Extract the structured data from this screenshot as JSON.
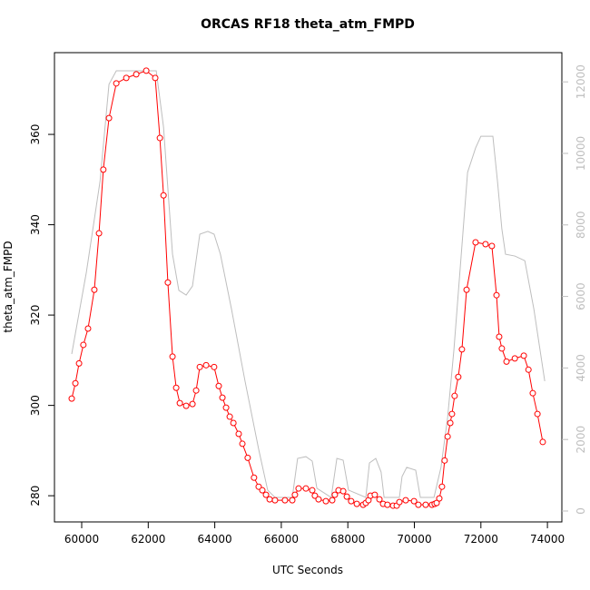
{
  "chart_data": {
    "type": "line",
    "title": "ORCAS RF18 theta_atm_FMPD",
    "x_label": "UTC Seconds",
    "y_label": "theta_atm_FMPD",
    "xlim": [
      59181,
      74434
    ],
    "ylim": [
      274.2,
      378.1
    ],
    "y2lim": [
      -305,
      12817
    ],
    "xticks": [
      60000,
      62000,
      64000,
      66000,
      68000,
      70000,
      72000,
      74000
    ],
    "yticks": [
      280,
      300,
      320,
      340,
      360
    ],
    "y2ticks": [
      0,
      2000,
      4000,
      6000,
      8000,
      10000,
      12000
    ],
    "series": [
      {
        "color": "#ff0000",
        "marker": "circle",
        "x": [
          59700,
          59810,
          59920,
          60050,
          60190,
          60380,
          60520,
          60650,
          60820,
          61040,
          61340,
          61640,
          61940,
          62210,
          62350,
          62460,
          62590,
          62730,
          62840,
          62950,
          63140,
          63330,
          63440,
          63550,
          63740,
          63980,
          64120,
          64230,
          64340,
          64450,
          64560,
          64720,
          64830,
          64990,
          65180,
          65320,
          65430,
          65540,
          65650,
          65810,
          66110,
          66330,
          66410,
          66520,
          66740,
          66930,
          67010,
          67120,
          67340,
          67530,
          67610,
          67720,
          67860,
          67970,
          68100,
          68270,
          68460,
          68540,
          68620,
          68680,
          68810,
          68950,
          69060,
          69190,
          69360,
          69470,
          69550,
          69740,
          69990,
          70120,
          70340,
          70530,
          70610,
          70670,
          70750,
          70830,
          70910,
          71000,
          71080,
          71130,
          71210,
          71320,
          71430,
          71570,
          71840,
          72140,
          72330,
          72470,
          72550,
          72630,
          72770,
          73020,
          73290,
          73430,
          73560,
          73700,
          73860
        ],
        "values": [
          301.5,
          304.9,
          309.3,
          313.4,
          317.0,
          325.6,
          338.1,
          352.2,
          363.6,
          371.3,
          372.5,
          373.3,
          374.1,
          372.5,
          359.2,
          346.5,
          327.2,
          310.8,
          303.9,
          300.5,
          299.9,
          300.3,
          303.3,
          308.5,
          308.9,
          308.5,
          304.3,
          301.7,
          299.5,
          297.5,
          296.1,
          293.7,
          291.5,
          288.4,
          284.0,
          282.0,
          281.2,
          280.2,
          279.2,
          279.0,
          279.0,
          279.0,
          280.2,
          281.6,
          281.6,
          281.2,
          280.0,
          279.2,
          278.8,
          279.0,
          280.2,
          281.2,
          281.0,
          279.8,
          278.8,
          278.2,
          278.0,
          278.4,
          279.0,
          280.0,
          280.2,
          279.2,
          278.2,
          278.0,
          277.8,
          277.8,
          278.6,
          279.0,
          278.8,
          278.0,
          278.0,
          278.0,
          278.2,
          278.4,
          279.4,
          282.0,
          287.8,
          293.1,
          296.1,
          298.1,
          302.1,
          306.3,
          312.4,
          325.6,
          336.1,
          335.7,
          335.3,
          324.4,
          315.2,
          312.6,
          309.7,
          310.4,
          311.0,
          307.9,
          302.7,
          298.1,
          291.9
        ]
      },
      {
        "color": "#bebebe",
        "axis": "y2",
        "x": [
          59700,
          60140,
          60550,
          60820,
          61040,
          61640,
          62240,
          62460,
          62730,
          62920,
          63140,
          63330,
          63550,
          63790,
          63980,
          64170,
          64500,
          64910,
          65320,
          65590,
          65810,
          66330,
          66490,
          66740,
          66930,
          67070,
          67500,
          67670,
          67860,
          68020,
          68540,
          68650,
          68840,
          69000,
          69090,
          69550,
          69630,
          69770,
          70040,
          70180,
          70590,
          70800,
          71000,
          71190,
          71600,
          71840,
          72000,
          72360,
          72500,
          72630,
          72740,
          73020,
          73320,
          73590,
          73920
        ],
        "values": [
          4390,
          6675,
          9210,
          11930,
          12310,
          12310,
          12310,
          10735,
          7180,
          6170,
          6040,
          6290,
          7740,
          7820,
          7740,
          7180,
          5660,
          3630,
          1725,
          585,
          380,
          380,
          1470,
          1520,
          1395,
          635,
          380,
          1470,
          1420,
          585,
          380,
          1345,
          1470,
          1090,
          380,
          380,
          965,
          1220,
          1140,
          380,
          380,
          1220,
          2615,
          4520,
          9470,
          10150,
          10480,
          10480,
          9210,
          7890,
          7180,
          7130,
          7000,
          5660,
          3630
        ]
      }
    ]
  }
}
